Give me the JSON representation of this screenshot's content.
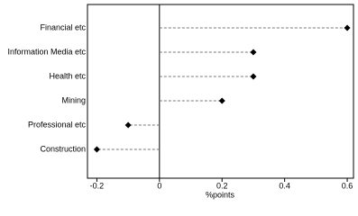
{
  "chart_data": {
    "type": "dot",
    "categories": [
      "Financial etc",
      "Information Media etc",
      "Health etc",
      "Mining",
      "Professional etc",
      "Construction"
    ],
    "values": [
      0.6,
      0.3,
      0.3,
      0.2,
      -0.1,
      -0.2
    ],
    "color": "#000000",
    "xlabel": "%points",
    "xlim": [
      -0.23,
      0.62
    ],
    "xticks": [
      -0.2,
      0,
      0.2,
      0.4,
      0.6
    ]
  }
}
